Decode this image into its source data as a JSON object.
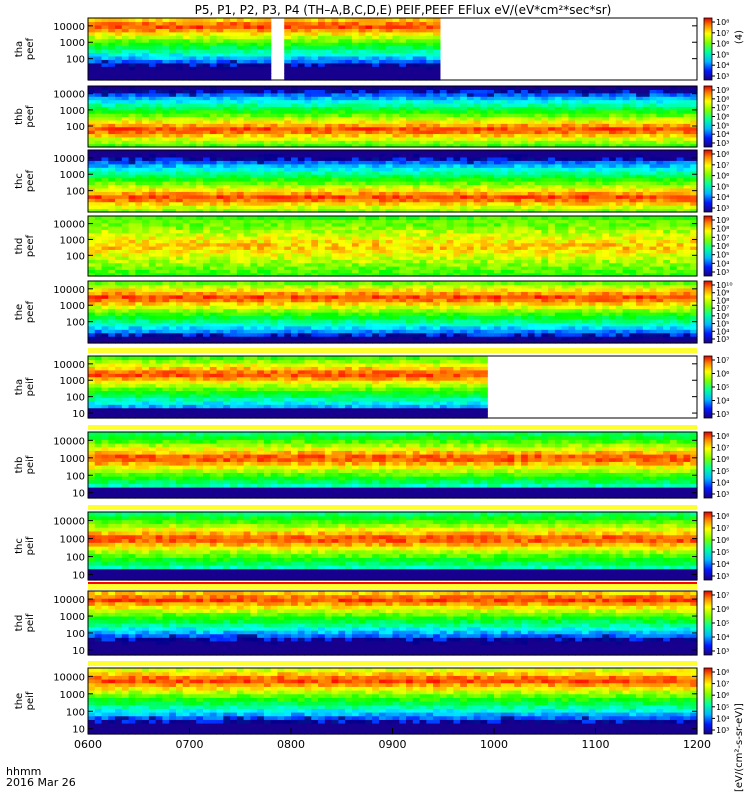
{
  "chart_data": {
    "type": "heatmap",
    "title": "P5, P1, P2, P3, P4 (TH–A,B,C,D,E) PEIF,PEEF EFlux eV/(eV*cm²*sec*sr)",
    "x_title_line1": "hhmm",
    "x_title_line2": "2016 Mar 26",
    "x_ticks": [
      "0600",
      "0700",
      "0800",
      "0900",
      "1000",
      "1100",
      "1200"
    ],
    "colorbar_unit_label": "[eV/(cm²-s-sr-eV)]",
    "colorbar_unit_fragment": "(4)",
    "panels": [
      {
        "probe": "tha",
        "species": "peef",
        "y_ticks": [
          "10000",
          "1000",
          "100"
        ],
        "y_range_eV": [
          5,
          30000
        ],
        "cbar_ticks": [
          "10⁸",
          "10⁷",
          "10⁶",
          "10⁵",
          "10⁴",
          "10³"
        ],
        "data_gaps": [
          [
            0.295,
            0.313
          ],
          [
            0.575,
            1.0
          ]
        ],
        "peak_log_eV": 4.0
      },
      {
        "probe": "thb",
        "species": "peef",
        "y_ticks": [
          "10000",
          "1000",
          "100"
        ],
        "y_range_eV": [
          5,
          30000
        ],
        "cbar_ticks": [
          "10⁹",
          "10⁸",
          "10⁷",
          "10⁶",
          "10⁵",
          "10⁴",
          "10³"
        ],
        "data_gaps": [],
        "peak_log_eV": 1.8
      },
      {
        "probe": "thc",
        "species": "peef",
        "y_ticks": [
          "10000",
          "1000",
          "100"
        ],
        "y_range_eV": [
          5,
          30000
        ],
        "cbar_ticks": [
          "10⁸",
          "10⁷",
          "10⁶",
          "10⁵",
          "10⁴",
          "10³"
        ],
        "data_gaps": [],
        "peak_log_eV": 1.6
      },
      {
        "probe": "thd",
        "species": "peef",
        "y_ticks": [
          "10000",
          "1000",
          "100"
        ],
        "y_range_eV": [
          5,
          30000
        ],
        "cbar_ticks": [
          "10⁹",
          "10⁸",
          "10⁷",
          "10⁶",
          "10⁵",
          "10⁴",
          "10³"
        ],
        "data_gaps": [],
        "peak_log_eV": 2.6
      },
      {
        "probe": "the",
        "species": "peef",
        "y_ticks": [
          "10000",
          "1000",
          "100"
        ],
        "y_range_eV": [
          5,
          30000
        ],
        "cbar_ticks": [
          "10¹⁰",
          "10⁹",
          "10⁸",
          "10⁷",
          "10⁶",
          "10⁵",
          "10⁴",
          "10³"
        ],
        "data_gaps": [],
        "peak_log_eV": 3.5
      },
      {
        "probe": "tha",
        "species": "peif",
        "y_ticks": [
          "10000",
          "1000",
          "100",
          "10"
        ],
        "y_range_eV": [
          5,
          30000
        ],
        "cbar_ticks": [
          "10⁷",
          "10⁶",
          "10⁵",
          "10⁴",
          "10³"
        ],
        "data_gaps": [
          [
            0.645,
            1.0
          ]
        ],
        "peak_log_eV": 3.4
      },
      {
        "probe": "thb",
        "species": "peif",
        "y_ticks": [
          "10000",
          "1000",
          "100",
          "10"
        ],
        "y_range_eV": [
          5,
          30000
        ],
        "cbar_ticks": [
          "10⁸",
          "10⁷",
          "10⁶",
          "10⁵",
          "10⁴",
          "10³"
        ],
        "data_gaps": [],
        "peak_log_eV": 3.0
      },
      {
        "probe": "thc",
        "species": "peif",
        "y_ticks": [
          "10000",
          "1000",
          "100",
          "10"
        ],
        "y_range_eV": [
          5,
          30000
        ],
        "cbar_ticks": [
          "10⁸",
          "10⁷",
          "10⁶",
          "10⁵",
          "10⁴",
          "10³"
        ],
        "data_gaps": [],
        "peak_log_eV": 3.0
      },
      {
        "probe": "thd",
        "species": "peif",
        "y_ticks": [
          "10000",
          "1000",
          "100",
          "10"
        ],
        "y_range_eV": [
          5,
          30000
        ],
        "cbar_ticks": [
          "10⁷",
          "10⁶",
          "10⁵",
          "10⁴",
          "10³"
        ],
        "data_gaps": [],
        "peak_log_eV": 4.0
      },
      {
        "probe": "the",
        "species": "peif",
        "y_ticks": [
          "10000",
          "1000",
          "100",
          "10"
        ],
        "y_range_eV": [
          5,
          30000
        ],
        "cbar_ticks": [
          "10⁸",
          "10⁷",
          "10⁶",
          "10⁵",
          "10⁴",
          "10³"
        ],
        "data_gaps": [],
        "peak_log_eV": 3.8
      }
    ]
  }
}
